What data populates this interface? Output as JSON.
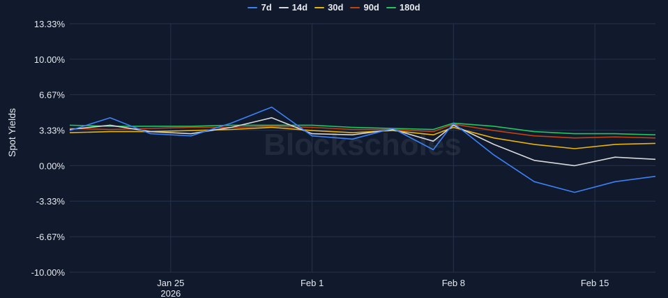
{
  "chart_data": {
    "type": "line",
    "ylabel": "Spot Yields",
    "xlabel": "",
    "title": "",
    "legend_position": "top",
    "grid": true,
    "y_unit": "%",
    "ylim": [
      -10.0,
      13.33
    ],
    "yticks": [
      "13.33%",
      "10.00%",
      "6.67%",
      "3.33%",
      "0.00%",
      "-3.33%",
      "-6.67%",
      "-10.00%"
    ],
    "ytick_values": [
      13.33,
      10.0,
      6.67,
      3.33,
      0.0,
      -3.33,
      -6.67,
      -10.0
    ],
    "xlim": [
      "2026-01-20",
      "2026-02-18"
    ],
    "xticks": [
      {
        "date": "2026-01-25",
        "label": "Jan 25",
        "sublabel": "2026"
      },
      {
        "date": "2026-02-01",
        "label": "Feb 1",
        "sublabel": ""
      },
      {
        "date": "2026-02-08",
        "label": "Feb 8",
        "sublabel": ""
      },
      {
        "date": "2026-02-15",
        "label": "Feb 15",
        "sublabel": ""
      }
    ],
    "watermark": "Blockscholes",
    "series": [
      {
        "name": "7d",
        "color": "#3b82f6",
        "x": [
          "2026-01-20",
          "2026-01-22",
          "2026-01-24",
          "2026-01-26",
          "2026-01-28",
          "2026-01-30",
          "2026-02-01",
          "2026-02-03",
          "2026-02-05",
          "2026-02-07",
          "2026-02-08",
          "2026-02-10",
          "2026-02-12",
          "2026-02-14",
          "2026-02-16",
          "2026-02-18"
        ],
        "values": [
          3.3,
          4.5,
          3.0,
          2.8,
          4.0,
          5.5,
          2.8,
          2.5,
          3.5,
          1.5,
          4.0,
          1.0,
          -1.5,
          -2.5,
          -1.5,
          -1.0
        ]
      },
      {
        "name": "14d",
        "color": "#d8d8d8",
        "x": [
          "2026-01-20",
          "2026-01-22",
          "2026-01-24",
          "2026-01-26",
          "2026-01-28",
          "2026-01-30",
          "2026-02-01",
          "2026-02-03",
          "2026-02-05",
          "2026-02-07",
          "2026-02-08",
          "2026-02-10",
          "2026-02-12",
          "2026-02-14",
          "2026-02-16",
          "2026-02-18"
        ],
        "values": [
          3.4,
          3.8,
          3.2,
          3.0,
          3.6,
          4.5,
          3.0,
          2.9,
          3.4,
          2.3,
          3.8,
          2.0,
          0.5,
          0.0,
          0.8,
          0.6
        ]
      },
      {
        "name": "30d",
        "color": "#eab308",
        "x": [
          "2026-01-20",
          "2026-01-22",
          "2026-01-24",
          "2026-01-26",
          "2026-01-28",
          "2026-01-30",
          "2026-02-01",
          "2026-02-03",
          "2026-02-05",
          "2026-02-07",
          "2026-02-08",
          "2026-02-10",
          "2026-02-12",
          "2026-02-14",
          "2026-02-16",
          "2026-02-18"
        ],
        "values": [
          3.1,
          3.2,
          3.2,
          3.3,
          3.4,
          3.6,
          3.3,
          3.1,
          3.3,
          2.9,
          3.6,
          2.6,
          2.0,
          1.6,
          2.0,
          2.1
        ]
      },
      {
        "name": "90d",
        "color": "#c2410c",
        "x": [
          "2026-01-20",
          "2026-01-22",
          "2026-01-24",
          "2026-01-26",
          "2026-01-28",
          "2026-01-30",
          "2026-02-01",
          "2026-02-03",
          "2026-02-05",
          "2026-02-07",
          "2026-02-08",
          "2026-02-10",
          "2026-02-12",
          "2026-02-14",
          "2026-02-16",
          "2026-02-18"
        ],
        "values": [
          3.5,
          3.4,
          3.5,
          3.6,
          3.6,
          3.7,
          3.6,
          3.4,
          3.4,
          3.2,
          3.9,
          3.3,
          2.8,
          2.6,
          2.7,
          2.6
        ]
      },
      {
        "name": "180d",
        "color": "#22c55e",
        "x": [
          "2026-01-20",
          "2026-01-22",
          "2026-01-24",
          "2026-01-26",
          "2026-01-28",
          "2026-01-30",
          "2026-02-01",
          "2026-02-03",
          "2026-02-05",
          "2026-02-07",
          "2026-02-08",
          "2026-02-10",
          "2026-02-12",
          "2026-02-14",
          "2026-02-16",
          "2026-02-18"
        ],
        "values": [
          3.8,
          3.7,
          3.7,
          3.7,
          3.8,
          3.8,
          3.8,
          3.6,
          3.5,
          3.4,
          4.0,
          3.7,
          3.2,
          3.0,
          3.0,
          2.9
        ]
      }
    ]
  }
}
